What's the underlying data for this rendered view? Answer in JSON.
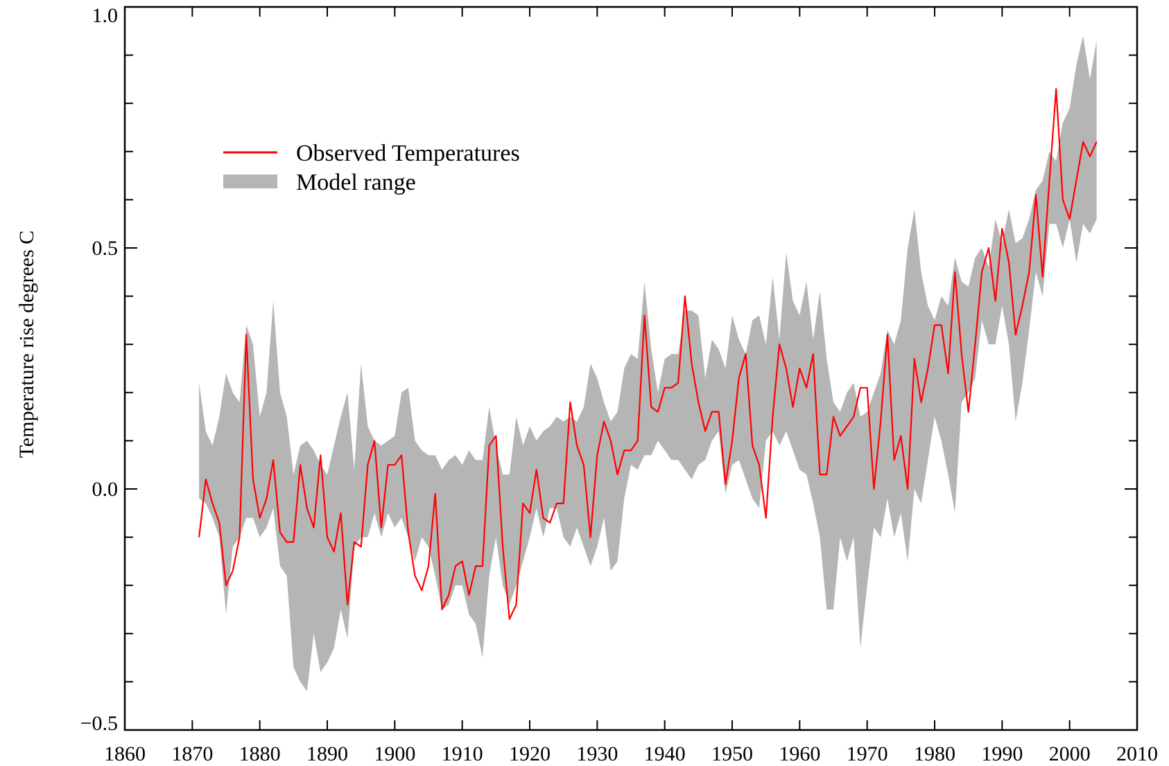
{
  "chart_data": {
    "type": "line",
    "title": "",
    "xlabel": "",
    "ylabel": "Temperature rise degrees C",
    "xlim": [
      1860,
      2010
    ],
    "ylim": [
      -0.5,
      1.0
    ],
    "x_ticks": [
      1860,
      1870,
      1880,
      1890,
      1900,
      1910,
      1920,
      1930,
      1940,
      1950,
      1960,
      1970,
      1980,
      1990,
      2000,
      2010
    ],
    "y_ticks": [
      -0.5,
      0.0,
      0.5,
      1.0
    ],
    "y_tick_labels": [
      "−0.5",
      "0.0",
      "0.5",
      "1.0"
    ],
    "x_tick_labels": [
      "1860",
      "1870",
      "1880",
      "1890",
      "1900",
      "1910",
      "1920",
      "1930",
      "1940",
      "1950",
      "1960",
      "1970",
      "1980",
      "1990",
      "2000",
      "2010"
    ],
    "grid": false,
    "legend_position": "top-left",
    "series": [
      {
        "name": "Observed Temperatures",
        "color": "#ff0000",
        "x": [
          1871,
          1872,
          1873,
          1874,
          1875,
          1876,
          1877,
          1878,
          1879,
          1880,
          1881,
          1882,
          1883,
          1884,
          1885,
          1886,
          1887,
          1888,
          1889,
          1890,
          1891,
          1892,
          1893,
          1894,
          1895,
          1896,
          1897,
          1898,
          1899,
          1900,
          1901,
          1902,
          1903,
          1904,
          1905,
          1906,
          1907,
          1908,
          1909,
          1910,
          1911,
          1912,
          1913,
          1914,
          1915,
          1916,
          1917,
          1918,
          1919,
          1920,
          1921,
          1922,
          1923,
          1924,
          1925,
          1926,
          1927,
          1928,
          1929,
          1930,
          1931,
          1932,
          1933,
          1934,
          1935,
          1936,
          1937,
          1938,
          1939,
          1940,
          1941,
          1942,
          1943,
          1944,
          1945,
          1946,
          1947,
          1948,
          1949,
          1950,
          1951,
          1952,
          1953,
          1954,
          1955,
          1956,
          1957,
          1958,
          1959,
          1960,
          1961,
          1962,
          1963,
          1964,
          1965,
          1966,
          1967,
          1968,
          1969,
          1970,
          1971,
          1972,
          1973,
          1974,
          1975,
          1976,
          1977,
          1978,
          1979,
          1980,
          1981,
          1982,
          1983,
          1984,
          1985,
          1986,
          1987,
          1988,
          1989,
          1990,
          1991,
          1992,
          1993,
          1994,
          1995,
          1996,
          1997,
          1998,
          1999,
          2000,
          2001,
          2002,
          2003,
          2004
        ],
        "values": [
          -0.1,
          0.02,
          -0.03,
          -0.07,
          -0.2,
          -0.17,
          -0.1,
          0.32,
          0.02,
          -0.06,
          -0.02,
          0.06,
          -0.09,
          -0.11,
          -0.11,
          0.05,
          -0.04,
          -0.08,
          0.07,
          -0.1,
          -0.13,
          -0.05,
          -0.24,
          -0.11,
          -0.12,
          0.05,
          0.1,
          -0.08,
          0.05,
          0.05,
          0.07,
          -0.09,
          -0.18,
          -0.21,
          -0.16,
          -0.01,
          -0.25,
          -0.22,
          -0.16,
          -0.15,
          -0.22,
          -0.16,
          -0.16,
          0.09,
          0.11,
          -0.12,
          -0.27,
          -0.24,
          -0.03,
          -0.05,
          0.04,
          -0.06,
          -0.07,
          -0.03,
          -0.03,
          0.18,
          0.09,
          0.05,
          -0.1,
          0.07,
          0.14,
          0.1,
          0.03,
          0.08,
          0.08,
          0.1,
          0.36,
          0.17,
          0.16,
          0.21,
          0.21,
          0.22,
          0.4,
          0.26,
          0.18,
          0.12,
          0.16,
          0.16,
          0.01,
          0.1,
          0.23,
          0.28,
          0.09,
          0.05,
          -0.06,
          0.15,
          0.3,
          0.25,
          0.17,
          0.25,
          0.21,
          0.28,
          0.03,
          0.03,
          0.15,
          0.11,
          0.13,
          0.15,
          0.21,
          0.21,
          0.0,
          0.14,
          0.32,
          0.06,
          0.11,
          0.0,
          0.27,
          0.18,
          0.25,
          0.34,
          0.34,
          0.24,
          0.45,
          0.28,
          0.16,
          0.3,
          0.45,
          0.5,
          0.39,
          0.54,
          0.47,
          0.32,
          0.38,
          0.45,
          0.61,
          0.44,
          0.64,
          0.83,
          0.6,
          0.56,
          0.64,
          0.72,
          0.69,
          0.72
        ]
      },
      {
        "name": "Model range",
        "color": "#b5b5b5",
        "type": "area",
        "x": [
          1871,
          1872,
          1873,
          1874,
          1875,
          1876,
          1877,
          1878,
          1879,
          1880,
          1881,
          1882,
          1883,
          1884,
          1885,
          1886,
          1887,
          1888,
          1889,
          1890,
          1891,
          1892,
          1893,
          1894,
          1895,
          1896,
          1897,
          1898,
          1899,
          1900,
          1901,
          1902,
          1903,
          1904,
          1905,
          1906,
          1907,
          1908,
          1909,
          1910,
          1911,
          1912,
          1913,
          1914,
          1915,
          1916,
          1917,
          1918,
          1919,
          1920,
          1921,
          1922,
          1923,
          1924,
          1925,
          1926,
          1927,
          1928,
          1929,
          1930,
          1931,
          1932,
          1933,
          1934,
          1935,
          1936,
          1937,
          1938,
          1939,
          1940,
          1941,
          1942,
          1943,
          1944,
          1945,
          1946,
          1947,
          1948,
          1949,
          1950,
          1951,
          1952,
          1953,
          1954,
          1955,
          1956,
          1957,
          1958,
          1959,
          1960,
          1961,
          1962,
          1963,
          1964,
          1965,
          1966,
          1967,
          1968,
          1969,
          1970,
          1971,
          1972,
          1973,
          1974,
          1975,
          1976,
          1977,
          1978,
          1979,
          1980,
          1981,
          1982,
          1983,
          1984,
          1985,
          1986,
          1987,
          1988,
          1989,
          1990,
          1991,
          1992,
          1993,
          1994,
          1995,
          1996,
          1997,
          1998,
          1999,
          2000,
          2001,
          2002,
          2003,
          2004
        ],
        "lower": [
          -0.02,
          -0.03,
          -0.06,
          -0.1,
          -0.26,
          -0.12,
          -0.1,
          -0.06,
          -0.06,
          -0.1,
          -0.08,
          -0.04,
          -0.16,
          -0.18,
          -0.37,
          -0.4,
          -0.42,
          -0.3,
          -0.38,
          -0.36,
          -0.33,
          -0.25,
          -0.31,
          -0.12,
          -0.1,
          -0.1,
          -0.05,
          -0.1,
          -0.05,
          -0.08,
          -0.06,
          -0.1,
          -0.15,
          -0.1,
          -0.12,
          -0.18,
          -0.25,
          -0.24,
          -0.2,
          -0.2,
          -0.26,
          -0.28,
          -0.35,
          -0.18,
          -0.1,
          -0.2,
          -0.24,
          -0.2,
          -0.15,
          -0.1,
          -0.04,
          -0.1,
          -0.04,
          -0.04,
          -0.1,
          -0.12,
          -0.08,
          -0.12,
          -0.16,
          -0.12,
          -0.06,
          -0.17,
          -0.15,
          -0.02,
          0.05,
          0.04,
          0.07,
          0.07,
          0.1,
          0.08,
          0.06,
          0.06,
          0.04,
          0.02,
          0.05,
          0.06,
          0.1,
          0.12,
          -0.01,
          0.05,
          0.06,
          0.02,
          -0.02,
          -0.04,
          0.1,
          0.12,
          0.09,
          0.12,
          0.08,
          0.04,
          0.03,
          -0.03,
          -0.1,
          -0.25,
          -0.25,
          -0.1,
          -0.15,
          -0.1,
          -0.33,
          -0.2,
          -0.08,
          -0.1,
          -0.02,
          -0.1,
          -0.05,
          -0.15,
          0.0,
          -0.03,
          0.06,
          0.15,
          0.1,
          0.03,
          -0.05,
          0.18,
          0.2,
          0.23,
          0.35,
          0.3,
          0.3,
          0.38,
          0.3,
          0.14,
          0.22,
          0.33,
          0.45,
          0.4,
          0.55,
          0.55,
          0.5,
          0.56,
          0.47,
          0.55,
          0.53,
          0.56
        ],
        "upper": [
          0.22,
          0.12,
          0.09,
          0.15,
          0.24,
          0.2,
          0.18,
          0.34,
          0.3,
          0.15,
          0.2,
          0.39,
          0.2,
          0.15,
          0.03,
          0.09,
          0.1,
          0.08,
          0.05,
          0.03,
          0.09,
          0.15,
          0.2,
          0.04,
          0.26,
          0.13,
          0.1,
          0.09,
          0.1,
          0.11,
          0.2,
          0.21,
          0.1,
          0.08,
          0.07,
          0.07,
          0.04,
          0.06,
          0.07,
          0.05,
          0.08,
          0.06,
          0.06,
          0.17,
          0.09,
          0.03,
          0.03,
          0.15,
          0.09,
          0.13,
          0.1,
          0.12,
          0.13,
          0.15,
          0.14,
          0.15,
          0.14,
          0.17,
          0.26,
          0.23,
          0.18,
          0.14,
          0.16,
          0.25,
          0.28,
          0.27,
          0.43,
          0.29,
          0.2,
          0.27,
          0.28,
          0.28,
          0.37,
          0.37,
          0.36,
          0.23,
          0.31,
          0.29,
          0.25,
          0.36,
          0.31,
          0.28,
          0.35,
          0.36,
          0.3,
          0.44,
          0.31,
          0.49,
          0.39,
          0.36,
          0.43,
          0.31,
          0.41,
          0.27,
          0.18,
          0.16,
          0.2,
          0.22,
          0.15,
          0.16,
          0.2,
          0.24,
          0.33,
          0.3,
          0.35,
          0.5,
          0.58,
          0.45,
          0.38,
          0.35,
          0.4,
          0.38,
          0.48,
          0.43,
          0.42,
          0.48,
          0.5,
          0.46,
          0.56,
          0.51,
          0.58,
          0.51,
          0.52,
          0.56,
          0.62,
          0.64,
          0.7,
          0.68,
          0.76,
          0.79,
          0.88,
          0.94,
          0.85,
          0.93
        ]
      }
    ]
  },
  "colors": {
    "observed_line": "#ff0000",
    "model_band": "#b5b5b5",
    "axis": "#000000",
    "background": "#ffffff"
  }
}
